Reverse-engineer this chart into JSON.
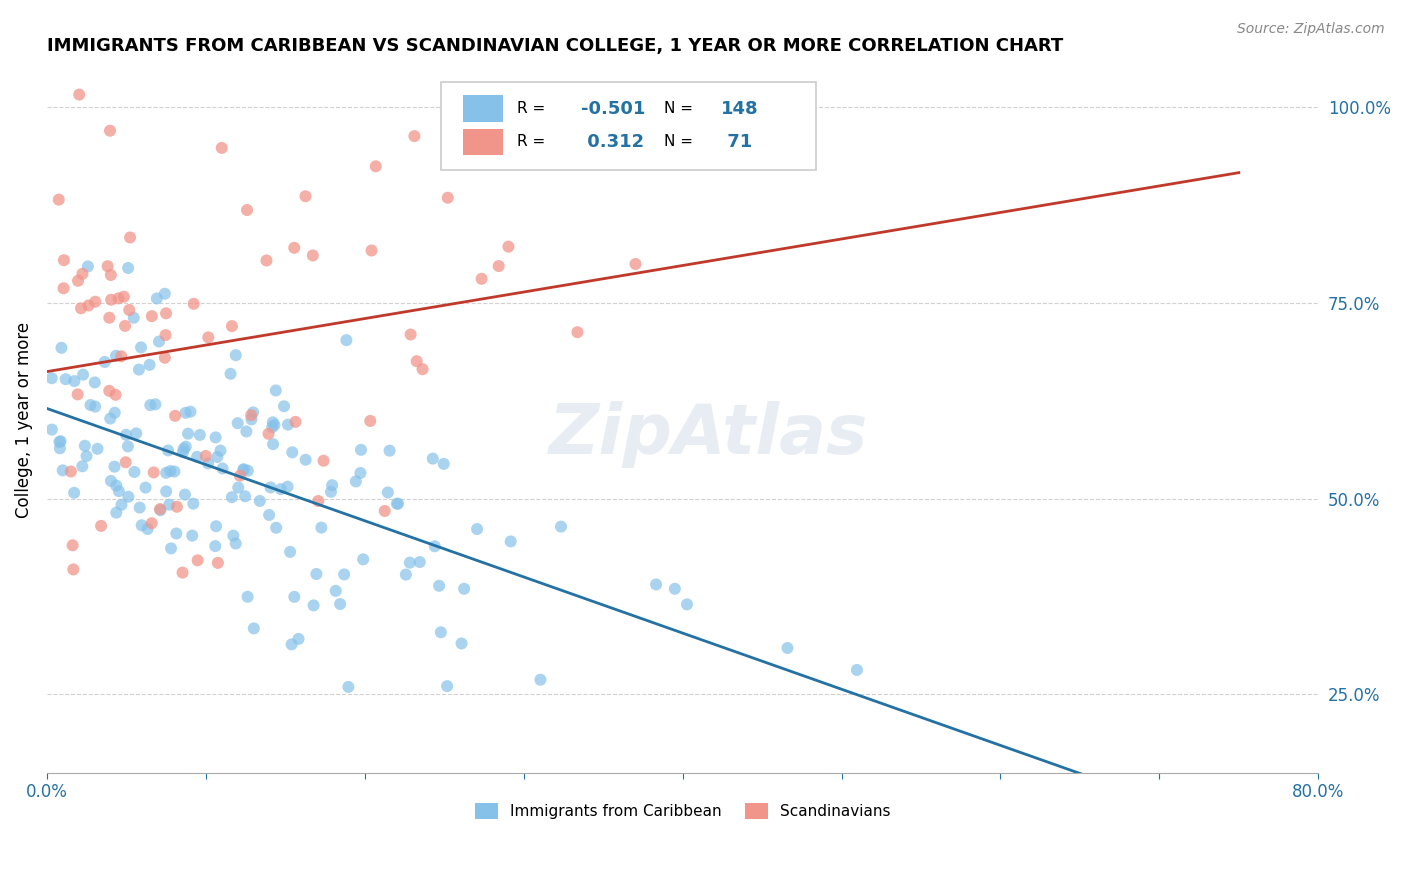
{
  "title": "IMMIGRANTS FROM CARIBBEAN VS SCANDINAVIAN COLLEGE, 1 YEAR OR MORE CORRELATION CHART",
  "source_text": "Source: ZipAtlas.com",
  "ylabel": "College, 1 year or more",
  "xlim": [
    0.0,
    0.8
  ],
  "ylim": [
    0.15,
    1.05
  ],
  "x_tick_labels": [
    "0.0%",
    "",
    "",
    "",
    "",
    "",
    "",
    "",
    "80.0%"
  ],
  "y_tick_labels": [
    "25.0%",
    "50.0%",
    "75.0%",
    "100.0%"
  ],
  "y_ticks": [
    0.25,
    0.5,
    0.75,
    1.0
  ],
  "blue_color": "#85C1E9",
  "pink_color": "#F1948A",
  "blue_line_color": "#2471A3",
  "pink_line_color": "#C0392B",
  "legend_R_blue": "-0.501",
  "legend_N_blue": "148",
  "legend_R_pink": "0.312",
  "legend_N_pink": "71",
  "legend_label_blue": "Immigrants from Caribbean",
  "legend_label_pink": "Scandinavians",
  "blue_R": -0.501,
  "blue_N": 148,
  "pink_R": 0.312,
  "pink_N": 71,
  "watermark": "ZipAtlas",
  "blue_seed": 42,
  "pink_seed": 99
}
